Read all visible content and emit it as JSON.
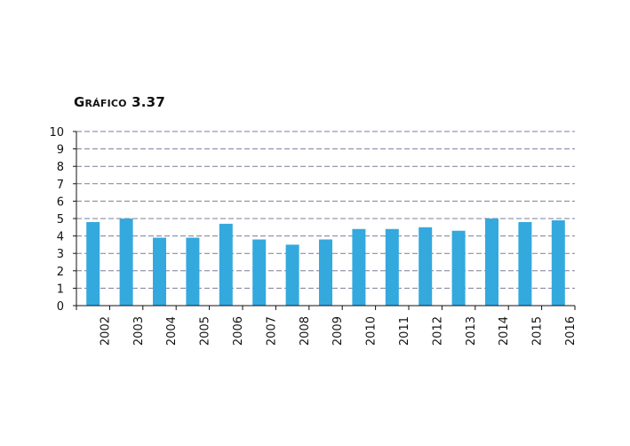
{
  "chart_data": {
    "type": "bar",
    "title": "Gráfico 3.37",
    "xlabel": "",
    "ylabel": "",
    "categories": [
      "2002",
      "2003",
      "2004",
      "2005",
      "2006",
      "2007",
      "2008",
      "2009",
      "2010",
      "2011",
      "2012",
      "2013",
      "2014",
      "2015",
      "2016"
    ],
    "values": [
      4.8,
      5.0,
      3.9,
      3.9,
      4.7,
      3.8,
      3.5,
      3.8,
      4.4,
      4.4,
      4.5,
      4.3,
      5.0,
      4.8,
      4.9
    ],
    "ylim": [
      0,
      10
    ],
    "yticks": [
      "0",
      "1",
      "2",
      "3",
      "4",
      "5",
      "6",
      "7",
      "8",
      "9",
      "10"
    ],
    "grid": true,
    "colors": {
      "bar": "#33a9de",
      "grid": "#7a7f9a",
      "axis": "#111111"
    }
  }
}
